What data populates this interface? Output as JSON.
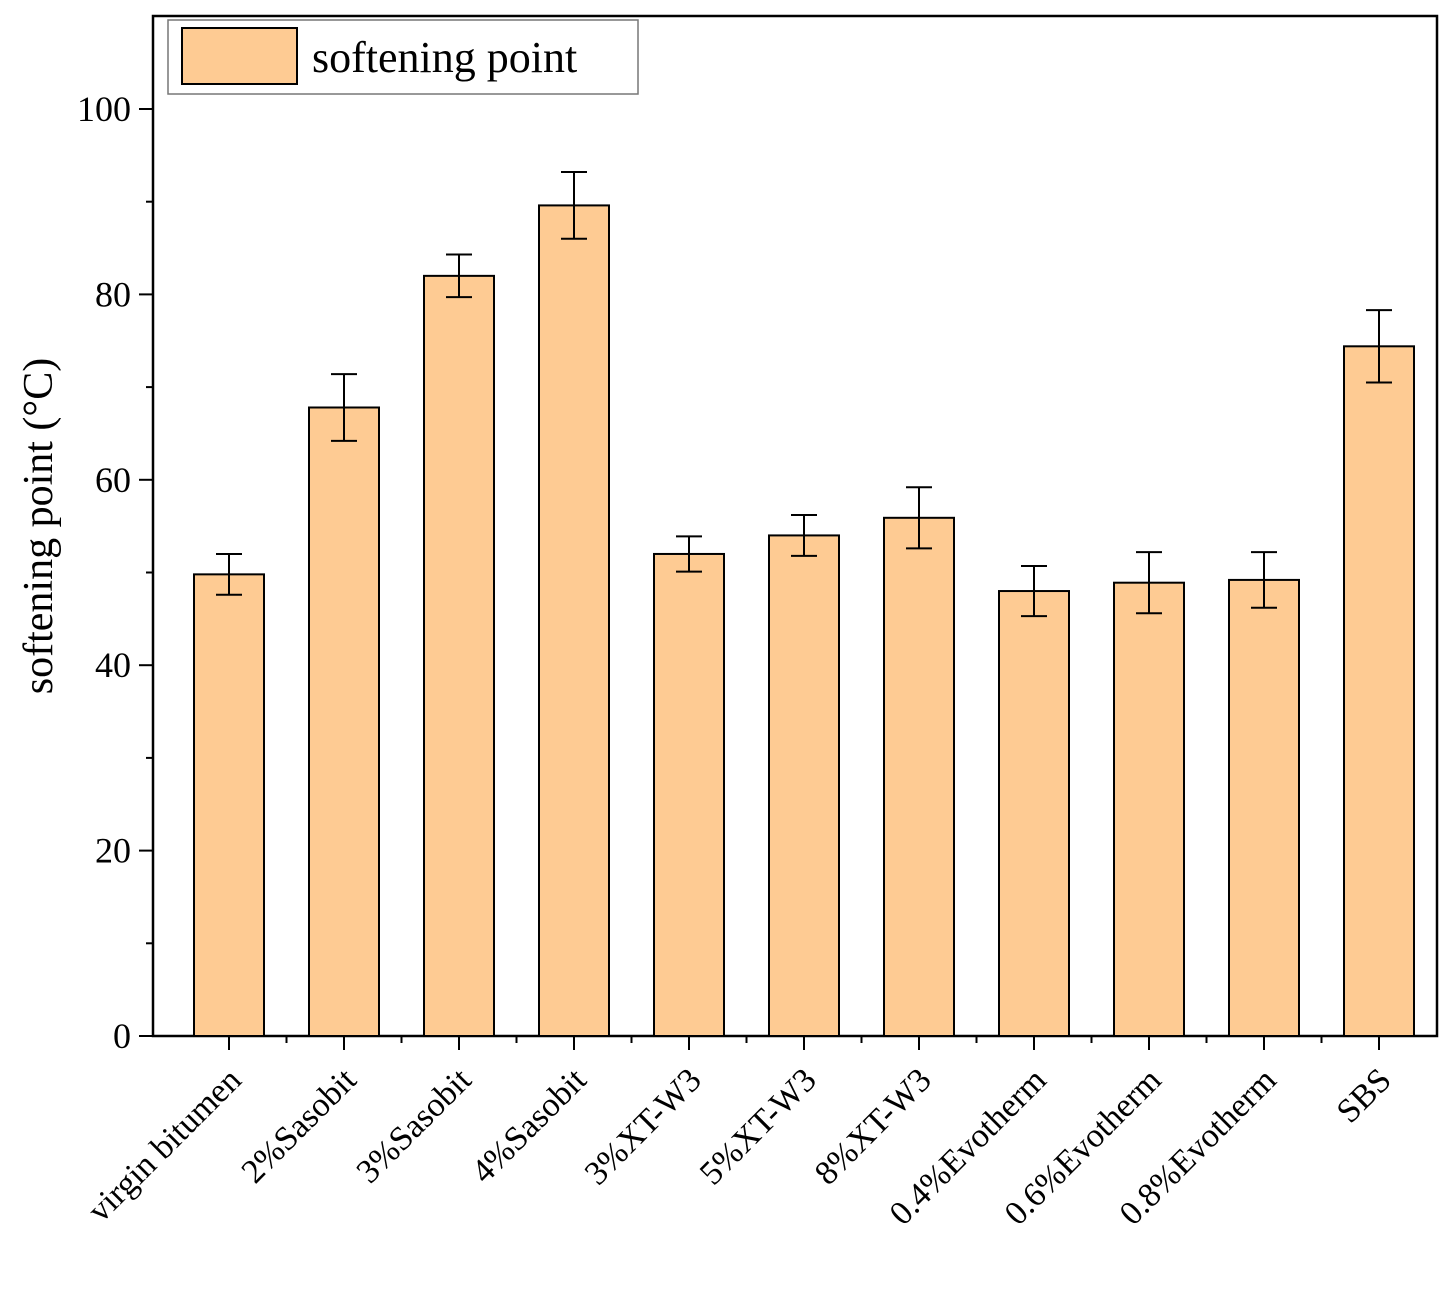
{
  "chart_data": {
    "type": "bar",
    "title": "",
    "xlabel": "",
    "ylabel": "softening point (°C)",
    "ylim": [
      0,
      110
    ],
    "yticks": [
      0,
      20,
      40,
      60,
      80,
      100
    ],
    "ytick_labels": [
      "0",
      "20",
      "40",
      "60",
      "80",
      "100"
    ],
    "legend": {
      "label": "softening point",
      "placement": "top-left"
    },
    "bar_color": "#FECB93",
    "edge_color": "#000000",
    "categories": [
      "virgin bitumen",
      "2%Sasobit",
      "3%Sasobit",
      "4%Sasobit",
      "3%XT-W3",
      "5%XT-W3",
      "8%XT-W3",
      "0.4%Evotherm",
      "0.6%Evotherm",
      "0.8%Evotherm",
      "SBS"
    ],
    "values": [
      49.8,
      67.8,
      82.0,
      89.6,
      52.0,
      54.0,
      55.9,
      48.0,
      48.9,
      49.2,
      74.4
    ],
    "errors": [
      2.2,
      3.6,
      2.3,
      3.6,
      1.9,
      2.2,
      3.3,
      2.7,
      3.3,
      3.0,
      3.9
    ]
  }
}
